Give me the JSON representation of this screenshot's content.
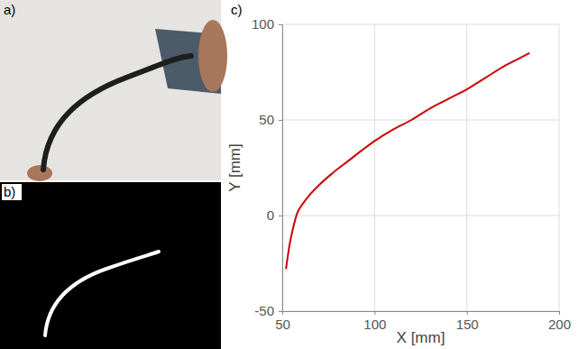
{
  "panel_labels": [
    "a)",
    "b)",
    "c)"
  ],
  "chart_data": {
    "type": "line",
    "x_label": "X [mm]",
    "y_label": "Y [mm]",
    "x": [
      52,
      54,
      56,
      58,
      61,
      65,
      70,
      77,
      85,
      93,
      100,
      110,
      120,
      130,
      140,
      150,
      160,
      170,
      178,
      184
    ],
    "values": [
      -28,
      -15,
      -6,
      1,
      6,
      11,
      16,
      22,
      28,
      34,
      39,
      45,
      50,
      56,
      61,
      66,
      72,
      78,
      82,
      85
    ],
    "color": "#cc0000",
    "xlim": [
      50,
      200
    ],
    "ylim": [
      -50,
      100
    ],
    "xticks": [
      50,
      100,
      150,
      200
    ],
    "yticks": [
      -50,
      0,
      50,
      100
    ],
    "grid": true
  }
}
